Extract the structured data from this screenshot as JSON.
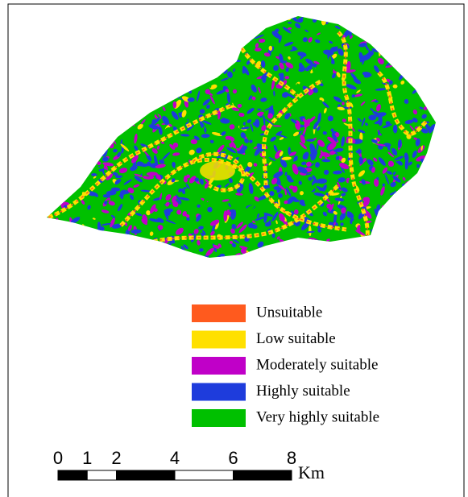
{
  "legend": {
    "items": [
      {
        "label": "Unsuitable",
        "color": "#ff5a1e"
      },
      {
        "label": "Low suitable",
        "color": "#ffe000"
      },
      {
        "label": "Moderately suitable",
        "color": "#c000c8"
      },
      {
        "label": "Highly suitable",
        "color": "#1e3cdc"
      },
      {
        "label": "Very highly suitable",
        "color": "#00c000"
      }
    ]
  },
  "scale_bar": {
    "ticks": [
      0,
      1,
      2,
      4,
      6,
      8
    ],
    "unit": "Km"
  }
}
